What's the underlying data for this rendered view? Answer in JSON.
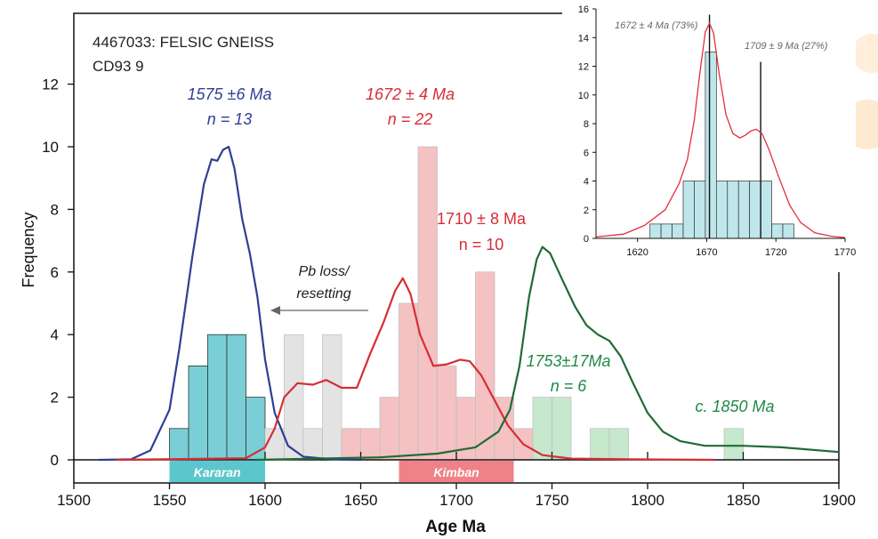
{
  "chart_data": [
    {
      "type": "histogram-kde",
      "title": "4467033: FELSIC GNEISS",
      "subtitle": "CD93 9",
      "xlabel": "Age Ma",
      "ylabel": "Frequency",
      "xlim": [
        1500,
        1900
      ],
      "ylim": [
        0,
        13
      ],
      "x_ticks": [
        "1500",
        "1550",
        "1600",
        "1650",
        "1700",
        "1750",
        "1800",
        "1850",
        "1900"
      ],
      "y_ticks": [
        "0",
        "2",
        "4",
        "6",
        "8",
        "10",
        "12"
      ],
      "bin_width": 10,
      "series": [
        {
          "color": "#79cfd5",
          "bars": [
            {
              "start": 1550,
              "count": 1
            },
            {
              "start": 1560,
              "count": 3
            },
            {
              "start": 1570,
              "count": 4
            },
            {
              "start": 1580,
              "count": 4
            },
            {
              "start": 1590,
              "count": 2
            }
          ]
        },
        {
          "color": "#e3e3e3",
          "bars": [
            {
              "start": 1600,
              "count": 1
            },
            {
              "start": 1610,
              "count": 4
            },
            {
              "start": 1620,
              "count": 1
            },
            {
              "start": 1630,
              "count": 4
            },
            {
              "start": 1640,
              "count": 1
            }
          ]
        },
        {
          "color": "#f4c2c2",
          "bars": [
            {
              "start": 1640,
              "count": 1
            },
            {
              "start": 1650,
              "count": 1
            },
            {
              "start": 1660,
              "count": 2
            },
            {
              "start": 1670,
              "count": 5
            },
            {
              "start": 1680,
              "count": 10
            },
            {
              "start": 1690,
              "count": 3
            },
            {
              "start": 1700,
              "count": 2
            },
            {
              "start": 1710,
              "count": 6
            },
            {
              "start": 1720,
              "count": 2
            },
            {
              "start": 1730,
              "count": 1
            }
          ]
        },
        {
          "color": "#c6e8cd",
          "bars": [
            {
              "start": 1740,
              "count": 2
            },
            {
              "start": 1750,
              "count": 2
            },
            {
              "start": 1770,
              "count": 1
            },
            {
              "start": 1780,
              "count": 1
            },
            {
              "start": 1840,
              "count": 1
            }
          ]
        }
      ],
      "curves": [
        {
          "color": "#2e3f96",
          "points": [
            [
              1513,
              0
            ],
            [
              1530,
              0.02
            ],
            [
              1540,
              0.3
            ],
            [
              1550,
              1.6
            ],
            [
              1555,
              3.5
            ],
            [
              1562,
              6.5
            ],
            [
              1568,
              8.8
            ],
            [
              1572,
              9.6
            ],
            [
              1575,
              9.55
            ],
            [
              1578,
              9.9
            ],
            [
              1581,
              10.0
            ],
            [
              1584,
              9.3
            ],
            [
              1588,
              7.7
            ],
            [
              1592,
              6.6
            ],
            [
              1596,
              5.2
            ],
            [
              1600,
              3.2
            ],
            [
              1605,
              1.5
            ],
            [
              1612,
              0.45
            ],
            [
              1620,
              0.1
            ],
            [
              1635,
              0.02
            ],
            [
              1650,
              0
            ]
          ]
        },
        {
          "color": "#d62d36",
          "points": [
            [
              1522,
              0
            ],
            [
              1590,
              0.05
            ],
            [
              1600,
              0.4
            ],
            [
              1605,
              1.0
            ],
            [
              1610,
              2.0
            ],
            [
              1617,
              2.45
            ],
            [
              1625,
              2.4
            ],
            [
              1632,
              2.55
            ],
            [
              1640,
              2.3
            ],
            [
              1648,
              2.3
            ],
            [
              1655,
              3.4
            ],
            [
              1662,
              4.4
            ],
            [
              1668,
              5.4
            ],
            [
              1672,
              5.8
            ],
            [
              1676,
              5.3
            ],
            [
              1681,
              4.0
            ],
            [
              1688,
              3.0
            ],
            [
              1695,
              3.05
            ],
            [
              1702,
              3.2
            ],
            [
              1707,
              3.15
            ],
            [
              1713,
              2.7
            ],
            [
              1720,
              1.9
            ],
            [
              1727,
              1.1
            ],
            [
              1735,
              0.5
            ],
            [
              1745,
              0.15
            ],
            [
              1760,
              0.04
            ],
            [
              1790,
              0.02
            ],
            [
              1835,
              0
            ]
          ]
        },
        {
          "color": "#1f6b35",
          "points": [
            [
              1595,
              0
            ],
            [
              1660,
              0.08
            ],
            [
              1690,
              0.2
            ],
            [
              1710,
              0.4
            ],
            [
              1722,
              0.9
            ],
            [
              1728,
              1.6
            ],
            [
              1733,
              3.0
            ],
            [
              1738,
              5.2
            ],
            [
              1742,
              6.4
            ],
            [
              1745,
              6.8
            ],
            [
              1749,
              6.6
            ],
            [
              1755,
              5.8
            ],
            [
              1762,
              4.9
            ],
            [
              1768,
              4.3
            ],
            [
              1774,
              4.0
            ],
            [
              1780,
              3.8
            ],
            [
              1786,
              3.3
            ],
            [
              1792,
              2.5
            ],
            [
              1800,
              1.5
            ],
            [
              1808,
              0.9
            ],
            [
              1817,
              0.6
            ],
            [
              1830,
              0.45
            ],
            [
              1850,
              0.45
            ],
            [
              1870,
              0.4
            ],
            [
              1900,
              0.25
            ]
          ]
        }
      ],
      "ticks_on_axis": [
        1600,
        1650,
        1700,
        1750,
        1800,
        1850
      ],
      "bands": [
        {
          "label": "Kararan",
          "start": 1550,
          "end": 1600,
          "color": "#5bc7cd"
        },
        {
          "label": "Kimban",
          "start": 1670,
          "end": 1730,
          "color": "#ef8288"
        }
      ],
      "annotations": {
        "blue_age": "1575 ±6 Ma",
        "blue_n": "n = 13",
        "red_age": "1672 ± 4 Ma",
        "red_n": "n = 22",
        "red2_age": "1710 ± 8 Ma",
        "red2_n": "n = 10",
        "green_age": "1753±17Ma",
        "green_n": "n = 6",
        "green2_age": "c. 1850 Ma",
        "pb_loss_1": "Pb loss/",
        "pb_loss_2": "resetting"
      },
      "colors": {
        "blue": "#2e3f96",
        "red": "#d62d36",
        "green": "#1f8a45",
        "pb_arrow": "#666666"
      }
    },
    {
      "type": "histogram-kde",
      "xlim": [
        1590,
        1770
      ],
      "ylim": [
        0,
        16
      ],
      "x_ticks": [
        "1620",
        "1670",
        "1720",
        "1770"
      ],
      "y_ticks": [
        "0",
        "2",
        "4",
        "6",
        "8",
        "10",
        "12",
        "14",
        "16"
      ],
      "bin_width": 8,
      "bars": [
        {
          "start": 1629,
          "count": 1
        },
        {
          "start": 1637,
          "count": 1
        },
        {
          "start": 1645,
          "count": 1
        },
        {
          "start": 1653,
          "count": 4
        },
        {
          "start": 1661,
          "count": 4
        },
        {
          "start": 1669,
          "count": 13
        },
        {
          "start": 1677,
          "count": 4
        },
        {
          "start": 1685,
          "count": 4
        },
        {
          "start": 1693,
          "count": 4
        },
        {
          "start": 1701,
          "count": 4
        },
        {
          "start": 1709,
          "count": 4
        },
        {
          "start": 1717,
          "count": 1
        },
        {
          "start": 1725,
          "count": 1
        }
      ],
      "bar_color": "#bfe6ea",
      "curve_color": "#e0303c",
      "curve": [
        [
          1590,
          0.1
        ],
        [
          1610,
          0.3
        ],
        [
          1625,
          0.9
        ],
        [
          1640,
          2.0
        ],
        [
          1650,
          3.8
        ],
        [
          1656,
          5.5
        ],
        [
          1661,
          8.2
        ],
        [
          1665,
          11.5
        ],
        [
          1669,
          14.4
        ],
        [
          1672,
          15.0
        ],
        [
          1675,
          14.3
        ],
        [
          1679,
          11.5
        ],
        [
          1684,
          8.6
        ],
        [
          1689,
          7.3
        ],
        [
          1694,
          7.0
        ],
        [
          1698,
          7.2
        ],
        [
          1702,
          7.5
        ],
        [
          1706,
          7.6
        ],
        [
          1710,
          7.3
        ],
        [
          1715,
          6.2
        ],
        [
          1722,
          4.3
        ],
        [
          1730,
          2.3
        ],
        [
          1738,
          1.1
        ],
        [
          1748,
          0.4
        ],
        [
          1760,
          0.15
        ],
        [
          1770,
          0.05
        ]
      ],
      "peaks": [
        {
          "age": 1672,
          "height": 15.6
        },
        {
          "age": 1709,
          "height": 12.3
        }
      ],
      "annotations": {
        "peak1": "1672 ± 4 Ma (73%)",
        "peak2": "1709  ± 9 Ma (27%)"
      }
    }
  ]
}
